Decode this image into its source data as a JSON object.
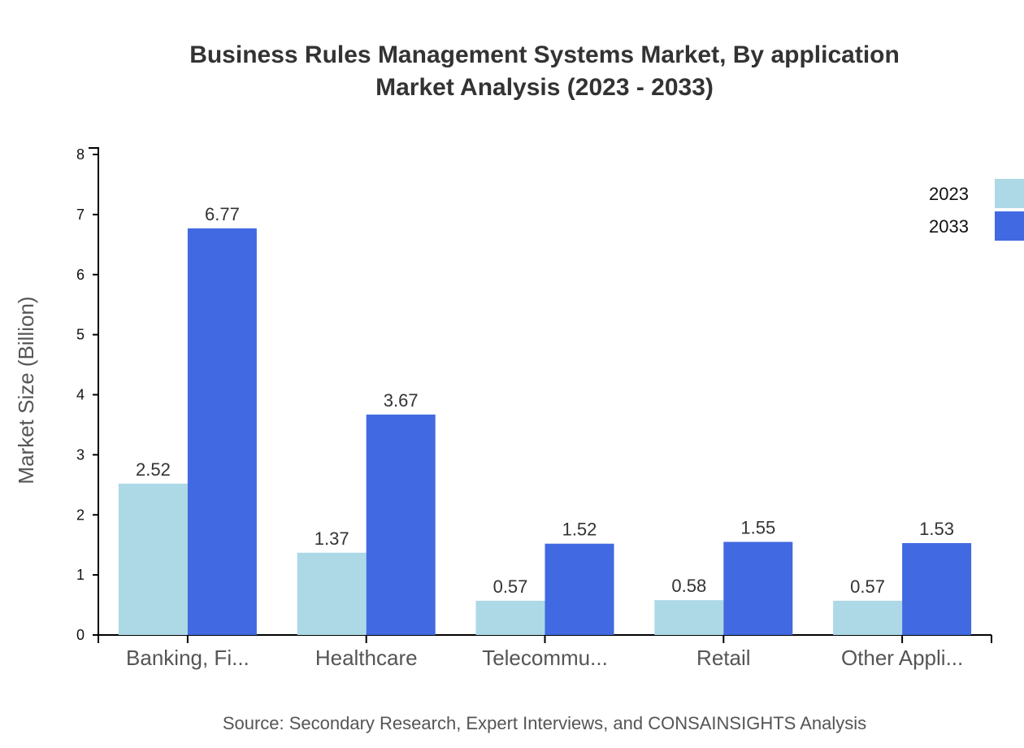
{
  "title": {
    "line1": "Business Rules Management Systems Market, By application",
    "line2": "Market Analysis (2023 - 2033)"
  },
  "source": "Source: Secondary Research, Expert Interviews, and CONSAINSIGHTS Analysis",
  "colors": {
    "series_2023": "#add8e6",
    "series_2033": "#4169e1",
    "axis": "#000000"
  },
  "chart_data": {
    "type": "bar",
    "title": "Business Rules Management Systems Market, By application Market Analysis (2023 - 2033)",
    "xlabel": "",
    "ylabel": "Market Size (Billion)",
    "ylim": [
      0,
      8
    ],
    "yticks": [
      0,
      1,
      2,
      3,
      4,
      5,
      6,
      7,
      8
    ],
    "grid": false,
    "legend_position": "top-right",
    "categories": [
      "Banking, Fi...",
      "Healthcare",
      "Telecommu...",
      "Retail",
      "Other Appli..."
    ],
    "series": [
      {
        "name": "2023",
        "color": "#add8e6",
        "values": [
          2.52,
          1.37,
          0.57,
          0.58,
          0.57
        ]
      },
      {
        "name": "2033",
        "color": "#4169e1",
        "values": [
          6.77,
          3.67,
          1.52,
          1.55,
          1.53
        ]
      }
    ],
    "value_labels": [
      [
        "2.52",
        "1.37",
        "0.57",
        "0.58",
        "0.57"
      ],
      [
        "6.77",
        "3.67",
        "1.52",
        "1.55",
        "1.53"
      ]
    ]
  }
}
